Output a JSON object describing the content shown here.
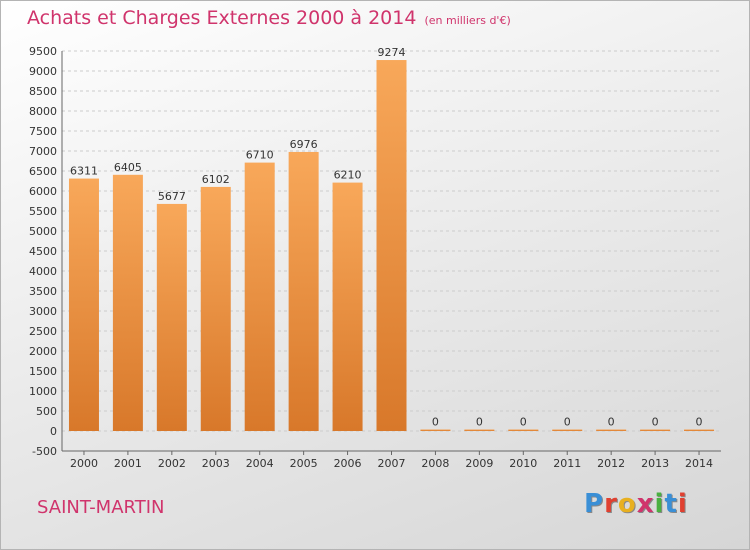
{
  "title": "Achats et Charges Externes 2000 à 2014",
  "unit_note": "(en milliers d'€)",
  "town": "SAINT-MARTIN",
  "logo_text": "Proxiti",
  "colors": {
    "title": "#d0346c",
    "bar_light": "#f8a85a",
    "bar_dark": "#d8782a",
    "grid": "#cccccc",
    "logo": [
      "#3a8fd6",
      "#e04030",
      "#e8b020",
      "#d0346c",
      "#4ab040",
      "#3a8fd6",
      "#e04030"
    ]
  },
  "chart_data": {
    "type": "bar",
    "title": "Achats et Charges Externes 2000 à 2014",
    "subtitle": "(en milliers d'€)",
    "categories": [
      "2000",
      "2001",
      "2002",
      "2003",
      "2004",
      "2005",
      "2006",
      "2007",
      "2008",
      "2009",
      "2010",
      "2011",
      "2012",
      "2013",
      "2014"
    ],
    "values": [
      6311,
      6405,
      5677,
      6102,
      6710,
      6976,
      6210,
      9274,
      0,
      0,
      0,
      0,
      0,
      0,
      0
    ],
    "ylim": [
      -500,
      9500
    ],
    "yticks": [
      -500,
      0,
      500,
      1000,
      1500,
      2000,
      2500,
      3000,
      3500,
      4000,
      4500,
      5000,
      5500,
      6000,
      6500,
      7000,
      7500,
      8000,
      8500,
      9000,
      9500
    ],
    "grid": true,
    "legend": "none"
  }
}
